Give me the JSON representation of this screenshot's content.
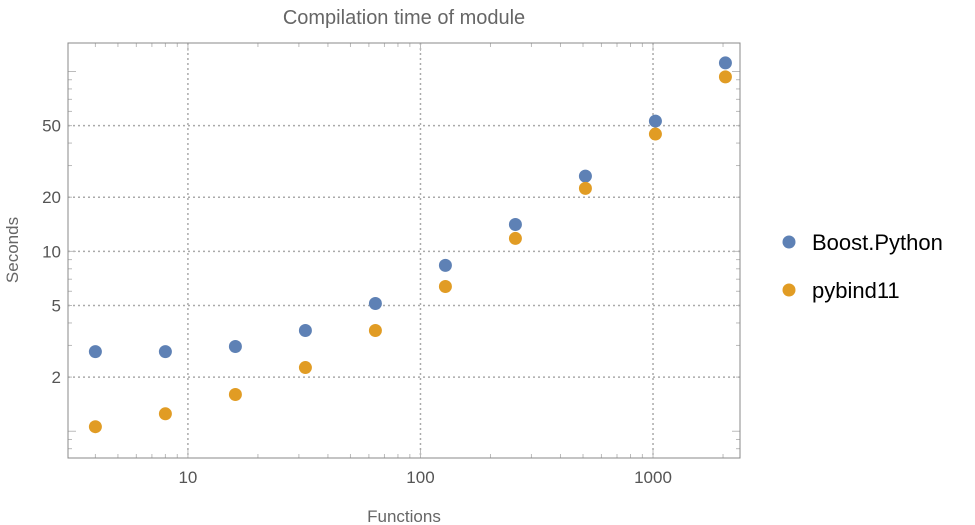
{
  "chart_data": {
    "type": "scatter",
    "title": "Compilation time of module",
    "xlabel": "Functions",
    "ylabel": "Seconds",
    "x_scale": "log",
    "y_scale": "log",
    "xlim": [
      3.05,
      2366
    ],
    "ylim": [
      0.71,
      144
    ],
    "grid": true,
    "legend_placement": "right",
    "x_ticks": [
      10,
      100,
      1000
    ],
    "x_tick_labels": [
      "10",
      "100",
      "1000"
    ],
    "y_ticks": [
      2,
      5,
      10,
      20,
      50
    ],
    "y_tick_labels": [
      "2",
      "5",
      "10",
      "20",
      "50"
    ],
    "x": [
      4,
      8,
      16,
      32,
      64,
      128,
      256,
      512,
      1024,
      2048
    ],
    "series": [
      {
        "name": "Boost.Python",
        "color": "#5e81b5",
        "values": [
          2.77,
          2.77,
          2.96,
          3.63,
          5.13,
          8.36,
          14.1,
          26.2,
          53.0,
          111.6
        ]
      },
      {
        "name": "pybind11",
        "color": "#e19c24",
        "values": [
          1.06,
          1.25,
          1.6,
          2.26,
          3.63,
          6.38,
          11.8,
          22.4,
          44.9,
          93.3
        ]
      }
    ]
  }
}
